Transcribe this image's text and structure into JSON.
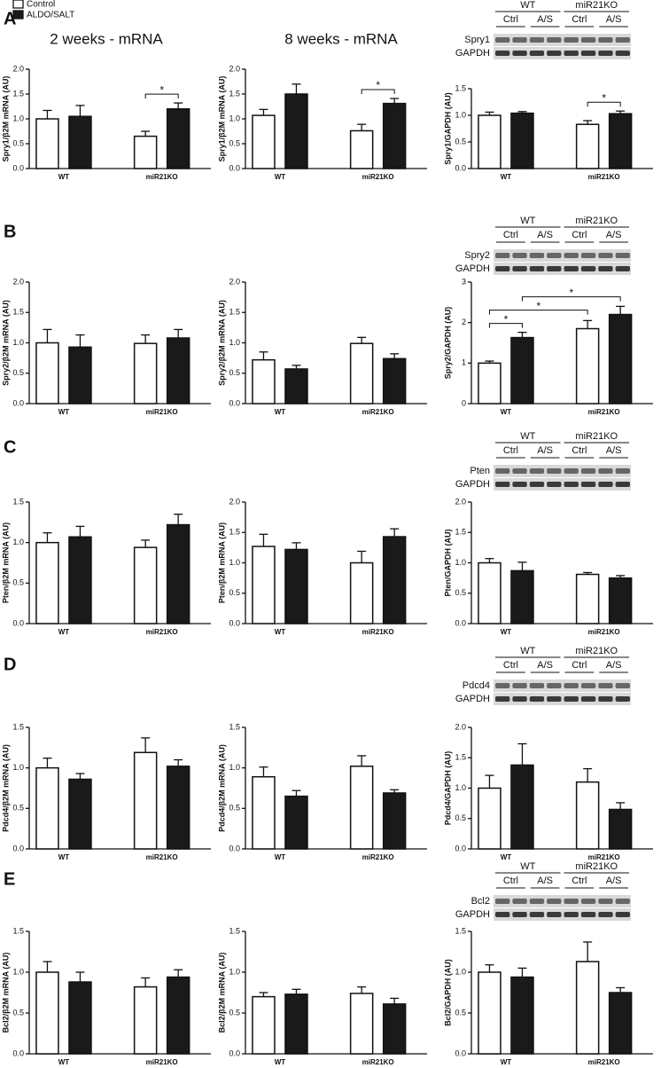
{
  "panels": [
    "A",
    "B",
    "C",
    "D",
    "E"
  ],
  "column_titles": [
    "2 weeks - mRNA",
    "8 weeks - mRNA"
  ],
  "blots": [
    {
      "groups": [
        "WT",
        "miR21KO"
      ],
      "lanes": [
        "Ctrl",
        "A/S",
        "Ctrl",
        "A/S"
      ],
      "proteins": [
        "Spry1",
        "GAPDH"
      ]
    },
    {
      "groups": [
        "WT",
        "miR21KO"
      ],
      "lanes": [
        "Ctrl",
        "A/S",
        "Ctrl",
        "A/S"
      ],
      "proteins": [
        "Spry2",
        "GAPDH"
      ]
    },
    {
      "groups": [
        "WT",
        "miR21KO"
      ],
      "lanes": [
        "Ctrl",
        "A/S",
        "Ctrl",
        "A/S"
      ],
      "proteins": [
        "Pten",
        "GAPDH"
      ]
    },
    {
      "groups": [
        "WT",
        "miR21KO"
      ],
      "lanes": [
        "Ctrl",
        "A/S",
        "Ctrl",
        "A/S"
      ],
      "proteins": [
        "Pdcd4",
        "GAPDH"
      ]
    },
    {
      "groups": [
        "WT",
        "miR21KO"
      ],
      "lanes": [
        "Ctrl",
        "A/S",
        "Ctrl",
        "A/S"
      ],
      "proteins": [
        "Bcl2",
        "GAPDH"
      ]
    }
  ],
  "chart_data": [
    {
      "type": "bar",
      "y_label": "Spry1/β2M mRNA (AU)",
      "categories": [
        "WT",
        "miR21KO"
      ],
      "series": [
        {
          "name": "Control",
          "color": "#ffffff",
          "values": [
            1.0,
            0.65
          ],
          "errors": [
            0.17,
            0.1
          ]
        },
        {
          "name": "ALDO/SALT",
          "color": "#1a1a1a",
          "values": [
            1.05,
            1.2
          ],
          "errors": [
            0.22,
            0.12
          ]
        }
      ],
      "ylim": [
        0,
        2
      ],
      "yticks": [
        {
          "value": 0,
          "label": "0.0"
        },
        0.5,
        {
          "value": 1,
          "label": "1.0"
        },
        1.5,
        {
          "value": 2,
          "label": "2.0"
        }
      ],
      "annotations": [
        {
          "text": "*",
          "bars": [
            [
              1,
              0
            ],
            [
              1,
              1
            ]
          ]
        }
      ]
    },
    {
      "type": "bar",
      "y_label": "Spry1/β2M mRNA (AU)",
      "categories": [
        "WT",
        "miR21KO"
      ],
      "series": [
        {
          "color": "#ffffff",
          "values": [
            1.07,
            0.76
          ],
          "errors": [
            0.12,
            0.13
          ]
        },
        {
          "color": "#1a1a1a",
          "values": [
            1.5,
            1.31
          ],
          "errors": [
            0.2,
            0.1
          ]
        }
      ],
      "ylim": [
        0,
        2
      ],
      "yticks": [
        {
          "value": 0,
          "label": "0.0"
        },
        0.5,
        {
          "value": 1,
          "label": "1.0"
        },
        1.5,
        {
          "value": 2,
          "label": "2.0"
        }
      ],
      "annotations": [
        {
          "text": "*",
          "bars": [
            [
              1,
              0
            ],
            [
              1,
              1
            ]
          ]
        }
      ]
    },
    {
      "type": "bar",
      "y_label": "Spry1/GAPDH (AU)",
      "categories": [
        "WT",
        "miR21KO"
      ],
      "series": [
        {
          "color": "#ffffff",
          "values": [
            1.0,
            0.83
          ],
          "errors": [
            0.06,
            0.07
          ]
        },
        {
          "color": "#1a1a1a",
          "values": [
            1.04,
            1.03
          ],
          "errors": [
            0.03,
            0.05
          ]
        }
      ],
      "ylim": [
        0,
        1.5
      ],
      "yticks": [
        {
          "value": 0,
          "label": "0.0"
        },
        0.5,
        {
          "value": 1,
          "label": "1.0"
        },
        1.5
      ],
      "annotations": [
        {
          "text": "*",
          "bars": [
            [
              1,
              0
            ],
            [
              1,
              1
            ]
          ]
        }
      ]
    },
    {
      "type": "bar",
      "y_label": "Spry2/β2M mRNA (AU)",
      "categories": [
        "WT",
        "miR21KO"
      ],
      "series": [
        {
          "color": "#ffffff",
          "values": [
            1.0,
            0.99
          ],
          "errors": [
            0.22,
            0.14
          ]
        },
        {
          "color": "#1a1a1a",
          "values": [
            0.93,
            1.08
          ],
          "errors": [
            0.2,
            0.14
          ]
        }
      ],
      "ylim": [
        0,
        2
      ],
      "yticks": [
        {
          "value": 0,
          "label": "0.0"
        },
        0.5,
        {
          "value": 1,
          "label": "1.0"
        },
        1.5,
        {
          "value": 2,
          "label": "2.0"
        }
      ]
    },
    {
      "type": "bar",
      "y_label": "Spry2/β2M mRNA (AU)",
      "categories": [
        "WT",
        "miR21KO"
      ],
      "series": [
        {
          "color": "#ffffff",
          "values": [
            0.72,
            0.99
          ],
          "errors": [
            0.13,
            0.1
          ]
        },
        {
          "color": "#1a1a1a",
          "values": [
            0.57,
            0.74
          ],
          "errors": [
            0.06,
            0.08
          ]
        }
      ],
      "ylim": [
        0,
        2
      ],
      "yticks": [
        {
          "value": 0,
          "label": "0.0"
        },
        0.5,
        {
          "value": 1,
          "label": "1.0"
        },
        1.5,
        {
          "value": 2,
          "label": "2.0"
        }
      ]
    },
    {
      "type": "bar",
      "y_label": "Spry2/GAPDH (AU)",
      "categories": [
        "WT",
        "miR21KO"
      ],
      "series": [
        {
          "color": "#ffffff",
          "values": [
            1.0,
            1.85
          ],
          "errors": [
            0.05,
            0.2
          ]
        },
        {
          "color": "#1a1a1a",
          "values": [
            1.63,
            2.2
          ],
          "errors": [
            0.13,
            0.2
          ]
        }
      ],
      "ylim": [
        0,
        3
      ],
      "yticks": [
        0,
        1,
        2,
        3
      ],
      "annotations": [
        {
          "text": "*",
          "bars": [
            [
              0,
              0
            ],
            [
              0,
              1
            ]
          ]
        },
        {
          "text": "*",
          "bars": [
            [
              0,
              0
            ],
            [
              1,
              0
            ]
          ]
        },
        {
          "text": "*",
          "bars": [
            [
              0,
              1
            ],
            [
              1,
              1
            ]
          ]
        }
      ]
    },
    {
      "type": "bar",
      "y_label": "Pten/β2M mRNA (AU)",
      "categories": [
        "WT",
        "miR21KO"
      ],
      "series": [
        {
          "color": "#ffffff",
          "values": [
            1.0,
            0.94
          ],
          "errors": [
            0.12,
            0.09
          ]
        },
        {
          "color": "#1a1a1a",
          "values": [
            1.07,
            1.22
          ],
          "errors": [
            0.13,
            0.13
          ]
        }
      ],
      "ylim": [
        0,
        1.5
      ],
      "yticks": [
        {
          "value": 0,
          "label": "0.0"
        },
        0.5,
        {
          "value": 1,
          "label": "1.0"
        },
        1.5
      ]
    },
    {
      "type": "bar",
      "y_label": "Pten/β2M mRNA (AU)",
      "categories": [
        "WT",
        "miR21KO"
      ],
      "series": [
        {
          "color": "#ffffff",
          "values": [
            1.27,
            1.0
          ],
          "errors": [
            0.2,
            0.19
          ]
        },
        {
          "color": "#1a1a1a",
          "values": [
            1.22,
            1.43
          ],
          "errors": [
            0.11,
            0.13
          ]
        }
      ],
      "ylim": [
        0,
        2
      ],
      "yticks": [
        {
          "value": 0,
          "label": "0.0"
        },
        0.5,
        {
          "value": 1,
          "label": "1.0"
        },
        1.5,
        {
          "value": 2,
          "label": "2.0"
        }
      ]
    },
    {
      "type": "bar",
      "y_label": "Pten/GAPDH (AU)",
      "categories": [
        "WT",
        "miR21KO"
      ],
      "series": [
        {
          "color": "#ffffff",
          "values": [
            1.0,
            0.81
          ],
          "errors": [
            0.07,
            0.03
          ]
        },
        {
          "color": "#1a1a1a",
          "values": [
            0.87,
            0.75
          ],
          "errors": [
            0.14,
            0.04
          ]
        }
      ],
      "ylim": [
        0,
        2
      ],
      "yticks": [
        {
          "value": 0,
          "label": "0.0"
        },
        0.5,
        {
          "value": 1,
          "label": "1.0"
        },
        1.5,
        {
          "value": 2,
          "label": "2.0"
        }
      ]
    },
    {
      "type": "bar",
      "y_label": "Pdcd4/β2M mRNA (AU)",
      "categories": [
        "WT",
        "miR21KO"
      ],
      "series": [
        {
          "color": "#ffffff",
          "values": [
            1.0,
            1.19
          ],
          "errors": [
            0.12,
            0.18
          ]
        },
        {
          "color": "#1a1a1a",
          "values": [
            0.86,
            1.02
          ],
          "errors": [
            0.07,
            0.08
          ]
        }
      ],
      "ylim": [
        0,
        1.5
      ],
      "yticks": [
        {
          "value": 0,
          "label": "0.0"
        },
        0.5,
        {
          "value": 1,
          "label": "1.0"
        },
        1.5
      ]
    },
    {
      "type": "bar",
      "y_label": "Pdcd4/β2M mRNA (AU)",
      "categories": [
        "WT",
        "miR21KO"
      ],
      "series": [
        {
          "color": "#ffffff",
          "values": [
            0.89,
            1.02
          ],
          "errors": [
            0.12,
            0.13
          ]
        },
        {
          "color": "#1a1a1a",
          "values": [
            0.65,
            0.69
          ],
          "errors": [
            0.07,
            0.04
          ]
        }
      ],
      "ylim": [
        0,
        1.5
      ],
      "yticks": [
        {
          "value": 0,
          "label": "0.0"
        },
        0.5,
        {
          "value": 1,
          "label": "1.0"
        },
        1.5
      ]
    },
    {
      "type": "bar",
      "y_label": "Pdcd4/GAPDH (AU)",
      "categories": [
        "WT",
        "miR21KO"
      ],
      "series": [
        {
          "color": "#ffffff",
          "values": [
            1.0,
            1.1
          ],
          "errors": [
            0.21,
            0.22
          ]
        },
        {
          "color": "#1a1a1a",
          "values": [
            1.38,
            0.65
          ],
          "errors": [
            0.35,
            0.11
          ]
        }
      ],
      "ylim": [
        0,
        2
      ],
      "yticks": [
        {
          "value": 0,
          "label": "0.0"
        },
        0.5,
        {
          "value": 1,
          "label": "1.0"
        },
        1.5,
        {
          "value": 2,
          "label": "2.0"
        }
      ]
    },
    {
      "type": "bar",
      "y_label": "Bcl2/β2M mRNA (AU)",
      "categories": [
        "WT",
        "miR21KO"
      ],
      "series": [
        {
          "color": "#ffffff",
          "values": [
            1.0,
            0.82
          ],
          "errors": [
            0.13,
            0.11
          ]
        },
        {
          "color": "#1a1a1a",
          "values": [
            0.88,
            0.94
          ],
          "errors": [
            0.12,
            0.09
          ]
        }
      ],
      "ylim": [
        0,
        1.5
      ],
      "yticks": [
        {
          "value": 0,
          "label": "0.0"
        },
        0.5,
        {
          "value": 1,
          "label": "1.0"
        },
        1.5
      ]
    },
    {
      "type": "bar",
      "y_label": "Bcl2/β2M mRNA (AU)",
      "categories": [
        "WT",
        "miR21KO"
      ],
      "series": [
        {
          "color": "#ffffff",
          "values": [
            0.7,
            0.74
          ],
          "errors": [
            0.05,
            0.08
          ]
        },
        {
          "color": "#1a1a1a",
          "values": [
            0.73,
            0.61
          ],
          "errors": [
            0.06,
            0.07
          ]
        }
      ],
      "ylim": [
        0,
        1.5
      ],
      "yticks": [
        {
          "value": 0,
          "label": "0.0"
        },
        0.5,
        {
          "value": 1,
          "label": "1.0"
        },
        1.5
      ]
    },
    {
      "type": "bar",
      "y_label": "Bcl2/GAPDH (AU)",
      "categories": [
        "WT",
        "miR21KO"
      ],
      "series": [
        {
          "color": "#ffffff",
          "values": [
            1.0,
            1.13
          ],
          "errors": [
            0.09,
            0.24
          ]
        },
        {
          "color": "#1a1a1a",
          "values": [
            0.94,
            0.75
          ],
          "errors": [
            0.11,
            0.06
          ]
        }
      ],
      "ylim": [
        0,
        1.5
      ],
      "yticks": [
        {
          "value": 0,
          "label": "0.0"
        },
        0.5,
        {
          "value": 1,
          "label": "1.0"
        },
        1.5
      ]
    }
  ]
}
